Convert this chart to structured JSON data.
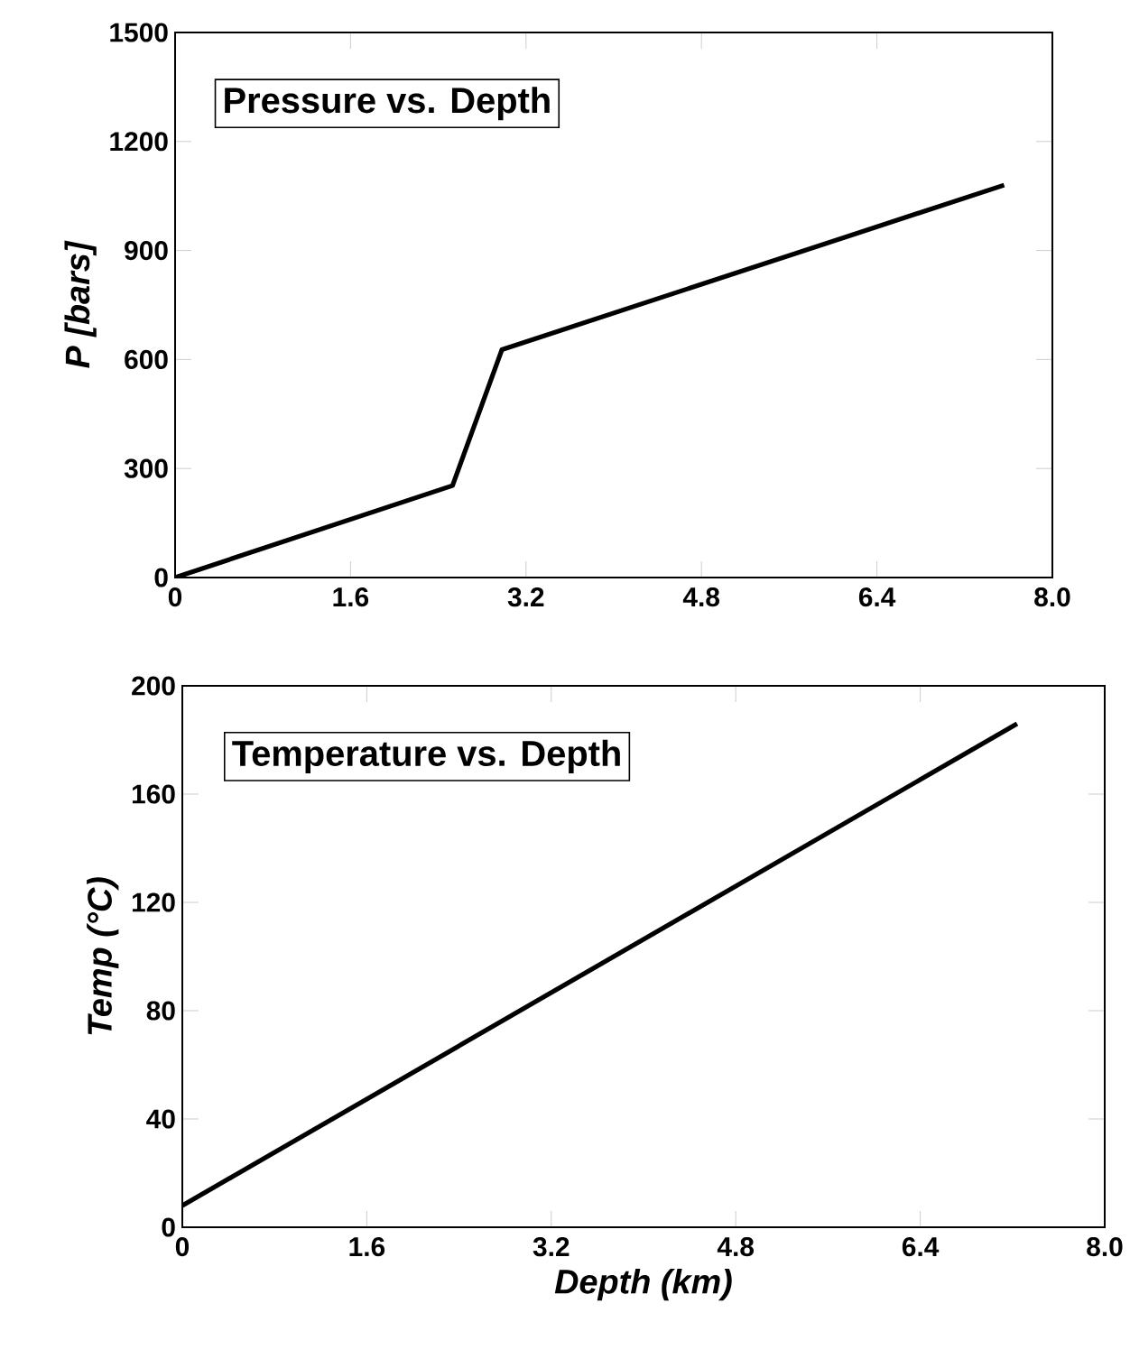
{
  "chart_data": [
    {
      "type": "line",
      "title": "Pressure vs. Depth",
      "ylabel": "P [bars]",
      "x": [
        0,
        2.53,
        2.98,
        7.56
      ],
      "values": [
        0,
        253,
        627,
        1080
      ],
      "color": "#000000",
      "xlim": [
        0,
        8
      ],
      "ylim": [
        0,
        1500
      ],
      "xticks": [
        0,
        1.6,
        3.2,
        4.8,
        6.4,
        {
          "value": 8,
          "label": "8.0"
        }
      ],
      "yticks": [
        0,
        300,
        600,
        900,
        1200,
        1500
      ],
      "marker": "none",
      "line_style": "solid"
    },
    {
      "type": "line",
      "title": "Temperature vs. Depth",
      "xlabel": "Depth (km)",
      "ylabel": "Temp (°C)",
      "x": [
        0,
        7.24
      ],
      "values": [
        8,
        186
      ],
      "color": "#000000",
      "xlim": [
        0,
        8
      ],
      "ylim": [
        0,
        200
      ],
      "xticks": [
        0,
        1.6,
        3.2,
        4.8,
        6.4,
        {
          "value": 8,
          "label": "8.0"
        }
      ],
      "yticks": [
        0,
        40,
        80,
        120,
        160,
        200
      ],
      "marker": "none",
      "line_style": "solid"
    }
  ]
}
